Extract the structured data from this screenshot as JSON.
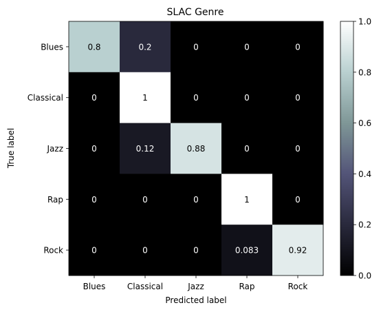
{
  "chart_data": {
    "type": "heatmap",
    "title": "SLAC Genre",
    "xlabel": "Predicted label",
    "ylabel": "True label",
    "x_categories": [
      "Blues",
      "Classical",
      "Jazz",
      "Rap",
      "Rock"
    ],
    "y_categories": [
      "Blues",
      "Classical",
      "Jazz",
      "Rap",
      "Rock"
    ],
    "values": [
      [
        0.8,
        0.2,
        0,
        0,
        0
      ],
      [
        0,
        1,
        0,
        0,
        0
      ],
      [
        0,
        0.12,
        0.88,
        0,
        0
      ],
      [
        0,
        0,
        0,
        1,
        0
      ],
      [
        0,
        0,
        0,
        0.083,
        0.92
      ]
    ],
    "cell_labels": [
      [
        "0.8",
        "0.2",
        "0",
        "0",
        "0"
      ],
      [
        "0",
        "1",
        "0",
        "0",
        "0"
      ],
      [
        "0",
        "0.12",
        "0.88",
        "0",
        "0"
      ],
      [
        "0",
        "0",
        "0",
        "1",
        "0"
      ],
      [
        "0",
        "0",
        "0",
        "0.083",
        "0.92"
      ]
    ],
    "colorbar": {
      "range": [
        0,
        1
      ],
      "ticks": [
        0.0,
        0.2,
        0.4,
        0.6,
        0.8,
        1.0
      ],
      "tick_labels": [
        "0.0",
        "0.2",
        "0.4",
        "0.6",
        "0.8",
        "1.0"
      ]
    },
    "colormap": [
      "#000000",
      "#29293c",
      "#535478",
      "#7f9797",
      "#b9d0d0",
      "#ffffff"
    ],
    "grid": false
  }
}
